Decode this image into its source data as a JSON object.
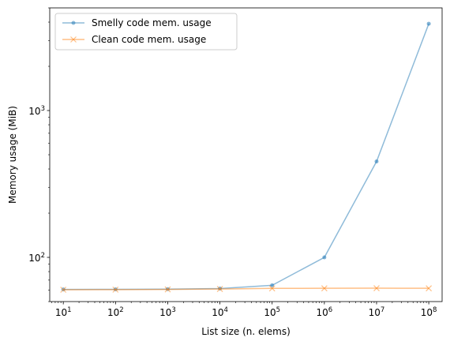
{
  "chart_data": {
    "type": "line",
    "xlabel": "List size (n. elems)",
    "ylabel": "Memory usage (MiB)",
    "xscale": "log",
    "yscale": "log",
    "xlim": [
      5.5,
      180000000
    ],
    "ylim": [
      50,
      5000
    ],
    "grid": false,
    "legend_position": "top-left",
    "x": [
      10,
      100,
      1000,
      10000,
      100000,
      1000000,
      10000000,
      100000000
    ],
    "x_ticks": [
      {
        "base": "10",
        "exp": "1",
        "value": 10
      },
      {
        "base": "10",
        "exp": "2",
        "value": 100
      },
      {
        "base": "10",
        "exp": "3",
        "value": 1000
      },
      {
        "base": "10",
        "exp": "4",
        "value": 10000
      },
      {
        "base": "10",
        "exp": "5",
        "value": 100000
      },
      {
        "base": "10",
        "exp": "6",
        "value": 1000000
      },
      {
        "base": "10",
        "exp": "7",
        "value": 10000000
      },
      {
        "base": "10",
        "exp": "8",
        "value": 100000000
      }
    ],
    "y_ticks": [
      {
        "base": "10",
        "exp": "2",
        "value": 100
      },
      {
        "base": "10",
        "exp": "3",
        "value": 1000
      }
    ],
    "series": [
      {
        "name": "Smelly code mem. usage",
        "color": "#1f77b4",
        "marker": "dot",
        "values": [
          60.5,
          60.6,
          60.8,
          61.3,
          64.5,
          100,
          450,
          3900
        ]
      },
      {
        "name": "Clean code mem. usage",
        "color": "#ff7f0e",
        "marker": "x",
        "values": [
          60.2,
          60.3,
          60.5,
          60.9,
          61.5,
          61.6,
          61.7,
          61.6
        ]
      }
    ]
  }
}
